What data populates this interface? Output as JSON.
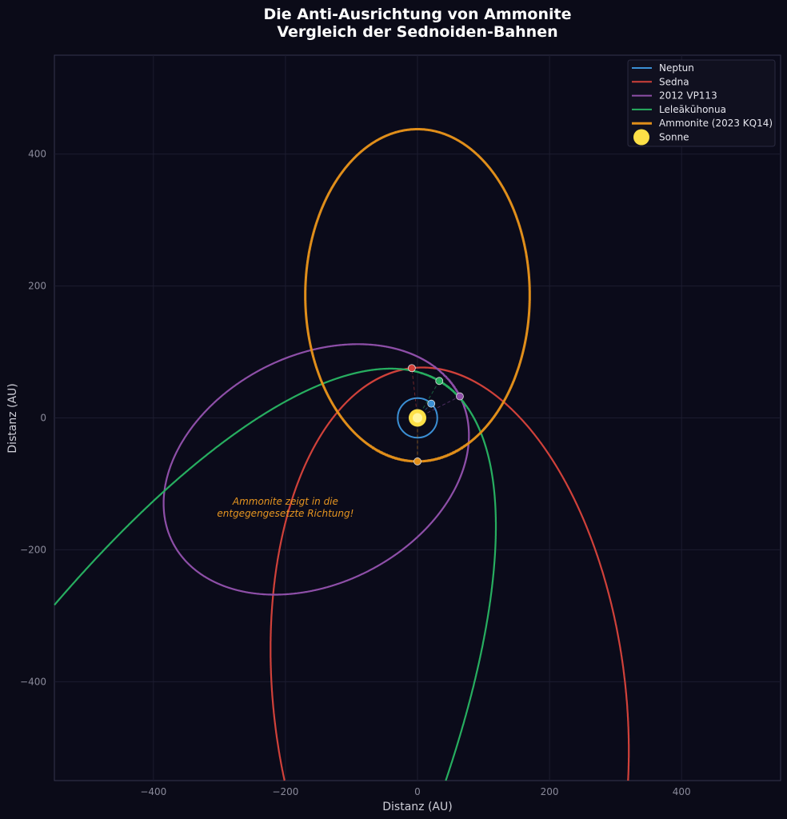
{
  "chart_data": {
    "type": "line",
    "title": "Die Anti-Ausrichtung von Ammonite",
    "subtitle": "Vergleich der Sednoiden-Bahnen",
    "xlabel": "Distanz (AU)",
    "ylabel": "Distanz (AU)",
    "xlim": [
      -550,
      550
    ],
    "ylim": [
      -550,
      550
    ],
    "xticks": [
      -400,
      -200,
      0,
      200,
      400
    ],
    "yticks": [
      -400,
      -200,
      0,
      200,
      400
    ],
    "xtick_labels": [
      "−400",
      "−200",
      "0",
      "200",
      "400"
    ],
    "ytick_labels": [
      "−400",
      "−200",
      "0",
      "200",
      "400"
    ],
    "grid": true,
    "legend_position": "top-right",
    "series": [
      {
        "name": "Neptun",
        "color": "#3b8fd4",
        "kind": "circle",
        "radius_au": 30,
        "marker_angle_deg": 46
      },
      {
        "name": "Sedna",
        "color": "#d0413a",
        "perihelion_au": 76,
        "eccentricity": 0.85,
        "perihelion_angle_deg": 96.5
      },
      {
        "name": "2012 VP113",
        "color": "#8e4fa8",
        "perihelion_au": 72,
        "eccentricity": 0.705,
        "perihelion_angle_deg": 27
      },
      {
        "name": "Leleākūhonua",
        "color": "#27ae60",
        "perihelion_au": 65,
        "eccentricity": 0.941,
        "perihelion_angle_deg": 59.5
      },
      {
        "name": "Ammonite (2023 KQ14)",
        "color": "#e08e1a",
        "perihelion_au": 66,
        "eccentricity": 0.738,
        "perihelion_angle_deg": 270
      }
    ],
    "sun": {
      "name": "Sonne",
      "color": "#fde047"
    },
    "annotation": {
      "lines": [
        "Ammonite zeigt in die",
        "entgegengesetzte Richtung!"
      ],
      "x": -200,
      "y": -140
    }
  }
}
